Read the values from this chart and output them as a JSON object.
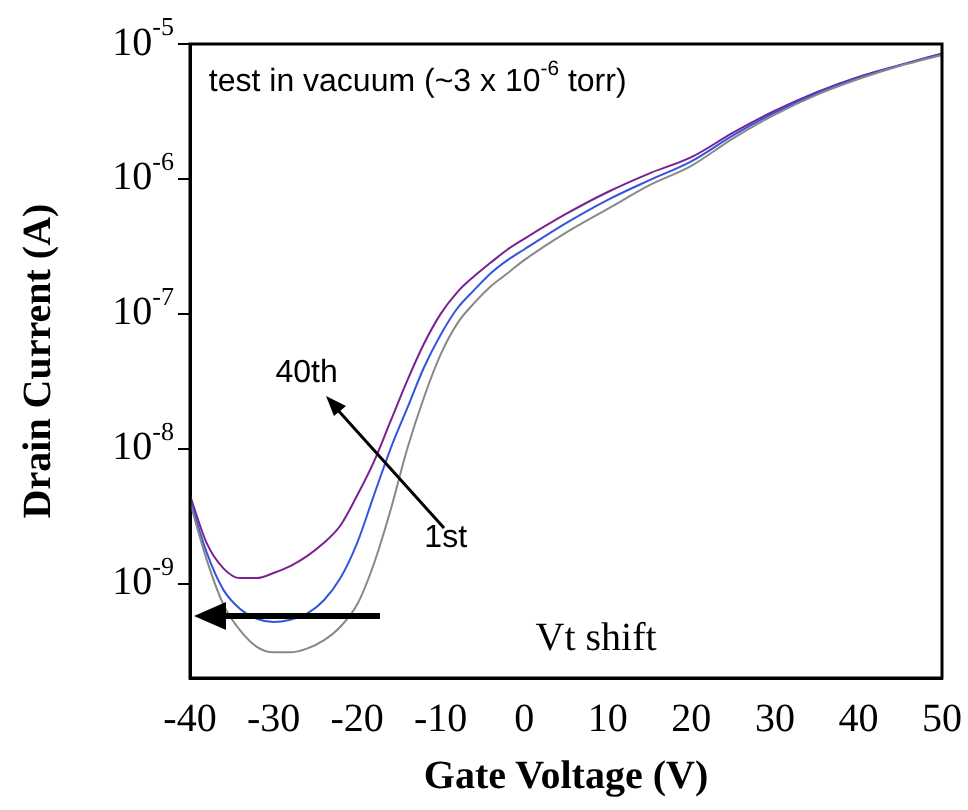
{
  "chart_data": {
    "type": "line",
    "xlabel": "Gate Voltage (V)",
    "ylabel": "Drain Current (A)",
    "log": "y",
    "grid": false,
    "legend": false,
    "marker": "none",
    "line_style": "solid",
    "xlim": [
      -40,
      50
    ],
    "xticks": [
      -40,
      -30,
      -20,
      -10,
      0,
      10,
      20,
      30,
      40,
      50
    ],
    "ylim": [
      2e-10,
      1e-05
    ],
    "yticks": [
      {
        "value": 1e-09,
        "label": "10$^{-9}$"
      },
      {
        "value": 1e-08,
        "label": "10$^{-8}$"
      },
      {
        "value": 1e-07,
        "label": "10$^{-7}$"
      },
      {
        "value": 1e-06,
        "label": "10$^{-6}$"
      },
      {
        "value": 1e-05,
        "label": "10$^{-5}$"
      }
    ],
    "x": [
      -40,
      -38,
      -36,
      -34,
      -32,
      -30,
      -28,
      -26,
      -24,
      -22,
      -20,
      -18,
      -16,
      -14,
      -12,
      -10,
      -8,
      -6,
      -4,
      -2,
      0,
      5,
      10,
      15,
      20,
      25,
      30,
      35,
      40,
      45,
      50
    ],
    "series": [
      {
        "color": "#888888",
        "values": [
          4e-09,
          1.5e-09,
          7e-10,
          4.5e-10,
          3.4e-10,
          3.1e-10,
          3.1e-10,
          3.3e-10,
          3.8e-10,
          4.8e-10,
          7e-10,
          1.4e-09,
          3.5e-09,
          1e-08,
          2.4e-08,
          5e-08,
          8.5e-08,
          1.2e-07,
          1.6e-07,
          2e-07,
          2.5e-07,
          4e-07,
          6e-07,
          9e-07,
          1.25e-06,
          2e-06,
          3e-06,
          4.2e-06,
          5.5e-06,
          6.9e-06,
          8.3e-06
        ]
      },
      {
        "color": "#3355dd",
        "values": [
          4.2e-09,
          1.7e-09,
          9e-10,
          6.5e-10,
          5.5e-10,
          5.2e-10,
          5.4e-10,
          6e-10,
          7.5e-10,
          1.1e-09,
          2e-09,
          4.5e-09,
          1e-08,
          2e-08,
          4e-08,
          7e-08,
          1.1e-07,
          1.5e-07,
          2e-07,
          2.5e-07,
          3e-07,
          4.7e-07,
          7e-07,
          9.8e-07,
          1.35e-06,
          2.1e-06,
          3.1e-06,
          4.3e-06,
          5.6e-06,
          6.95e-06,
          8.4e-06
        ]
      },
      {
        "color": "#7a2090",
        "values": [
          4.5e-09,
          2e-09,
          1.3e-09,
          1.1e-09,
          1.1e-09,
          1.2e-09,
          1.35e-09,
          1.6e-09,
          2e-09,
          2.7e-09,
          4.5e-09,
          8e-09,
          1.6e-08,
          3.2e-08,
          6e-08,
          1e-07,
          1.45e-07,
          1.9e-07,
          2.4e-07,
          3e-07,
          3.6e-07,
          5.5e-07,
          8e-07,
          1.1e-06,
          1.45e-06,
          2.2e-06,
          3.2e-06,
          4.4e-06,
          5.7e-06,
          7e-06,
          8.5e-06
        ]
      }
    ],
    "annotations": [
      "test in vacuum (~3 x 10$^{-6}$ torr)",
      "40th",
      "1st",
      "Vt shift"
    ]
  }
}
